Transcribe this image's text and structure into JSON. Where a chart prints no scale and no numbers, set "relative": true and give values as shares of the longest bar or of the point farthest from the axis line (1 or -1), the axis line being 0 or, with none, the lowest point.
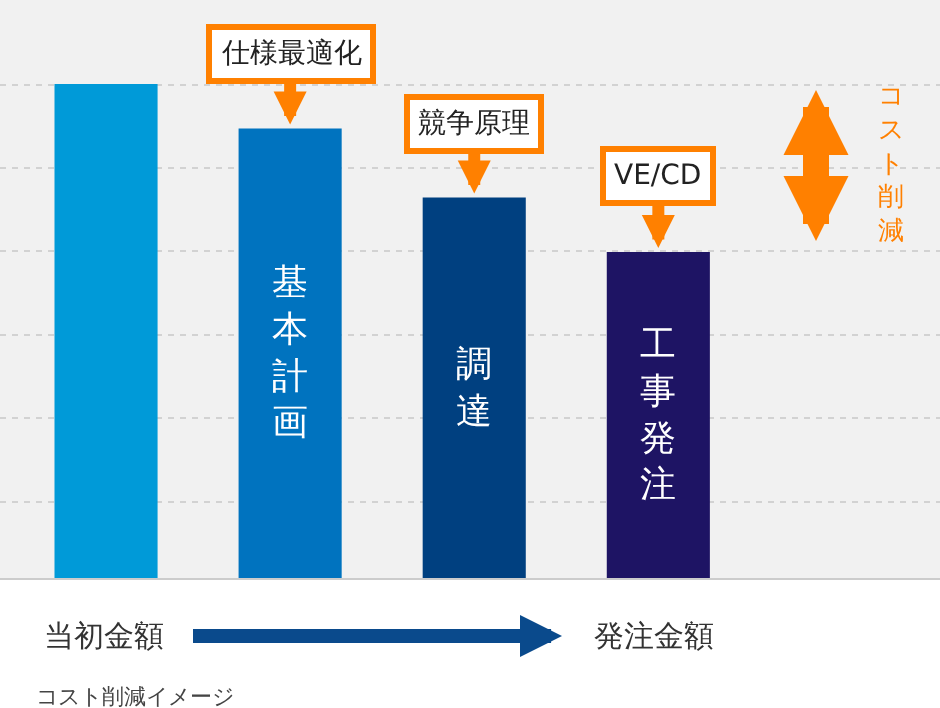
{
  "chart_data": {
    "type": "bar",
    "relative": true,
    "grid": "y",
    "categories": [
      null,
      "基本計画",
      "調達",
      "工事発注"
    ],
    "values": [
      1,
      0.91,
      0.77,
      0.66
    ],
    "colors": [
      "#009ad8",
      "#0073bf",
      "#004080",
      "#1e1464"
    ],
    "annotations": [
      "仕様最適化",
      "競争原理",
      "VE/CD",
      "コスト削減",
      "当初金額",
      "発注金額",
      "コスト削減イメージ"
    ]
  }
}
